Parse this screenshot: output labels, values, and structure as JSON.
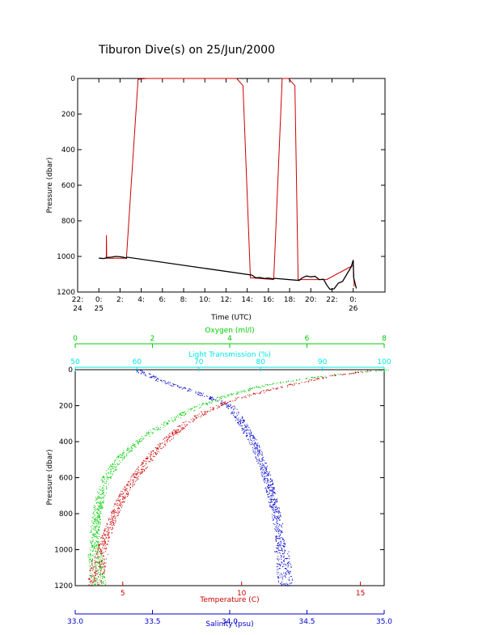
{
  "title": "Tiburon Dive(s) on 25/Jun/2000",
  "chart_data": [
    {
      "type": "line",
      "xlabel": "Time (UTC)",
      "ylabel": "Pressure (dbar)",
      "xlim": [
        22,
        51
      ],
      "ylim": [
        0,
        1200
      ],
      "y_reversed": true,
      "x_ticks": [
        {
          "v": 22,
          "l1": "22:",
          "l2": "24"
        },
        {
          "v": 24,
          "l1": "0:",
          "l2": "25"
        },
        {
          "v": 26,
          "l1": "2:",
          "l2": ""
        },
        {
          "v": 28,
          "l1": "4:",
          "l2": ""
        },
        {
          "v": 30,
          "l1": "6:",
          "l2": ""
        },
        {
          "v": 32,
          "l1": "8:",
          "l2": ""
        },
        {
          "v": 34,
          "l1": "10:",
          "l2": ""
        },
        {
          "v": 36,
          "l1": "12:",
          "l2": ""
        },
        {
          "v": 38,
          "l1": "14:",
          "l2": ""
        },
        {
          "v": 40,
          "l1": "16:",
          "l2": ""
        },
        {
          "v": 42,
          "l1": "18:",
          "l2": ""
        },
        {
          "v": 44,
          "l1": "20:",
          "l2": ""
        },
        {
          "v": 46,
          "l1": "22:",
          "l2": ""
        },
        {
          "v": 48,
          "l1": "0:",
          "l2": "26"
        }
      ],
      "y_ticks": [
        0,
        200,
        400,
        600,
        800,
        1000,
        1200
      ],
      "series": [
        {
          "color": "#cc0000",
          "points": [
            [
              24.5,
              1010
            ],
            [
              24.7,
              1010
            ],
            [
              24.72,
              880
            ],
            [
              24.74,
              1010
            ],
            [
              25.8,
              1010
            ],
            [
              26.6,
              1010
            ],
            [
              27.7,
              5
            ],
            [
              28.5,
              0
            ],
            [
              37.0,
              0
            ],
            [
              37.6,
              40
            ],
            [
              38.3,
              1120
            ],
            [
              40.5,
              1130
            ],
            [
              41.3,
              0
            ],
            [
              41.9,
              0
            ],
            [
              42.5,
              40
            ],
            [
              42.8,
              1130
            ],
            [
              45.5,
              1130
            ],
            [
              48.0,
              1050
            ],
            [
              48.1,
              1170
            ]
          ]
        },
        {
          "color": "#000000",
          "points": [
            [
              24.0,
              1010
            ],
            [
              24.5,
              1012
            ],
            [
              24.8,
              1006
            ],
            [
              25.2,
              1004
            ],
            [
              25.6,
              1000
            ],
            [
              26.0,
              1002
            ],
            [
              26.4,
              1006
            ],
            [
              26.6,
              1010
            ],
            [
              26.65,
              1004
            ],
            [
              38.45,
              1105
            ],
            [
              38.8,
              1120
            ],
            [
              39.2,
              1118
            ],
            [
              39.6,
              1124
            ],
            [
              40.0,
              1122
            ],
            [
              40.4,
              1126
            ],
            [
              40.6,
              1123
            ],
            [
              42.9,
              1135
            ],
            [
              43.2,
              1120
            ],
            [
              43.6,
              1110
            ],
            [
              44.0,
              1115
            ],
            [
              44.4,
              1112
            ],
            [
              44.8,
              1130
            ],
            [
              45.2,
              1128
            ],
            [
              45.5,
              1160
            ],
            [
              45.8,
              1185
            ],
            [
              46.2,
              1182
            ],
            [
              46.6,
              1150
            ],
            [
              47.0,
              1140
            ],
            [
              47.4,
              1100
            ],
            [
              47.8,
              1060
            ],
            [
              48.0,
              1020
            ],
            [
              48.05,
              1120
            ],
            [
              48.3,
              1180
            ]
          ]
        }
      ]
    },
    {
      "type": "scatter",
      "ylabel": "Pressure (dbar)",
      "ylim": [
        0,
        1200
      ],
      "y_ticks": [
        0,
        200,
        400,
        600,
        800,
        1000,
        1200
      ],
      "axes": [
        {
          "label": "Oxygen (ml/l)",
          "color": "#00cc00",
          "position": "top",
          "range": [
            0,
            8
          ],
          "ticks": [
            0,
            2,
            4,
            6,
            8
          ]
        },
        {
          "label": "Light Transmission (%)",
          "color": "#00e5e5",
          "position": "top",
          "range": [
            50,
            100
          ],
          "ticks": [
            50,
            60,
            70,
            80,
            90,
            100
          ]
        },
        {
          "label": "Temperature (C)",
          "color": "#cc0000",
          "position": "bottom",
          "range": [
            3,
            16
          ],
          "ticks": [
            5,
            10,
            15
          ],
          "tick_labels": [
            "5",
            "10",
            "15"
          ]
        },
        {
          "label": "Salinity (psu)",
          "color": "#0000cc",
          "position": "bottom",
          "range": [
            33.0,
            35.0
          ],
          "ticks": [
            33.0,
            33.5,
            34.0,
            34.5,
            35.0
          ],
          "tick_labels": [
            "33.0",
            "33.5",
            "34.0",
            "34.5",
            "35.0"
          ]
        }
      ],
      "series": [
        {
          "color": "#00cc00",
          "axis": 0,
          "profile": [
            [
              8.0,
              0
            ],
            [
              6.5,
              30
            ],
            [
              5.0,
              80
            ],
            [
              3.8,
              150
            ],
            [
              3.0,
              220
            ],
            [
              2.3,
              300
            ],
            [
              1.6,
              400
            ],
            [
              1.1,
              500
            ],
            [
              0.8,
              600
            ],
            [
              0.65,
              700
            ],
            [
              0.55,
              800
            ],
            [
              0.5,
              900
            ],
            [
              0.5,
              1000
            ],
            [
              0.55,
              1100
            ],
            [
              0.6,
              1200
            ]
          ]
        },
        {
          "color": "#cc0000",
          "axis": 2,
          "profile": [
            [
              15.5,
              0
            ],
            [
              13.5,
              40
            ],
            [
              11.5,
              100
            ],
            [
              9.5,
              170
            ],
            [
              8.5,
              230
            ],
            [
              7.6,
              300
            ],
            [
              6.9,
              380
            ],
            [
              6.3,
              460
            ],
            [
              5.7,
              560
            ],
            [
              5.2,
              650
            ],
            [
              4.8,
              750
            ],
            [
              4.5,
              850
            ],
            [
              4.2,
              950
            ],
            [
              4.0,
              1050
            ],
            [
              3.8,
              1200
            ]
          ]
        },
        {
          "color": "#0000cc",
          "axis": 3,
          "profile": [
            [
              33.4,
              0
            ],
            [
              33.55,
              60
            ],
            [
              33.8,
              130
            ],
            [
              34.0,
              200
            ],
            [
              34.05,
              260
            ],
            [
              34.1,
              330
            ],
            [
              34.15,
              400
            ],
            [
              34.2,
              500
            ],
            [
              34.24,
              600
            ],
            [
              34.27,
              700
            ],
            [
              34.3,
              800
            ],
            [
              34.32,
              900
            ],
            [
              34.33,
              1000
            ],
            [
              34.35,
              1100
            ],
            [
              34.36,
              1200
            ]
          ]
        }
      ]
    }
  ]
}
